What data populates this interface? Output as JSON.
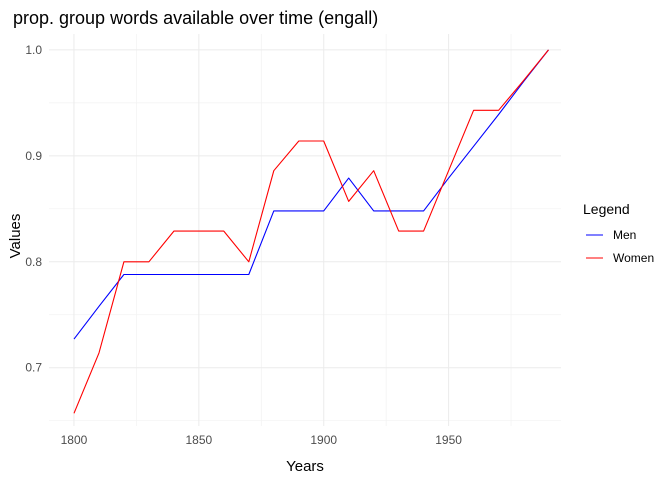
{
  "chart_data": {
    "type": "line",
    "title": "prop. group words available over time (engall)",
    "xlabel": "Years",
    "ylabel": "Values",
    "xlim": [
      1790,
      1995
    ],
    "ylim": [
      0.645,
      1.015
    ],
    "x_ticks": [
      1800,
      1850,
      1900,
      1950
    ],
    "y_ticks": [
      0.7,
      0.8,
      0.9,
      1.0
    ],
    "x_tick_labels": [
      "1800",
      "1850",
      "1900",
      "1950"
    ],
    "y_tick_labels": [
      "0.7",
      "0.8",
      "0.9",
      "1.0"
    ],
    "grid": true,
    "legend_position": "right",
    "legend_title": "Legend",
    "x": [
      1800,
      1810,
      1820,
      1830,
      1840,
      1850,
      1860,
      1870,
      1880,
      1890,
      1900,
      1910,
      1920,
      1930,
      1940,
      1950,
      1960,
      1970,
      1980,
      1990
    ],
    "series": [
      {
        "name": "Men",
        "color": "#0000ff",
        "values": [
          0.727,
          0.758,
          0.788,
          0.788,
          0.788,
          0.788,
          0.788,
          0.788,
          0.848,
          0.848,
          0.848,
          0.879,
          0.848,
          0.848,
          0.848,
          0.879,
          0.909,
          0.939,
          0.97,
          1.0
        ]
      },
      {
        "name": "Women",
        "color": "#ff0000",
        "values": [
          0.657,
          0.714,
          0.8,
          0.8,
          0.829,
          0.829,
          0.829,
          0.8,
          0.886,
          0.914,
          0.914,
          0.857,
          0.886,
          0.829,
          0.829,
          0.886,
          0.943,
          0.943,
          0.971,
          1.0
        ]
      }
    ]
  }
}
